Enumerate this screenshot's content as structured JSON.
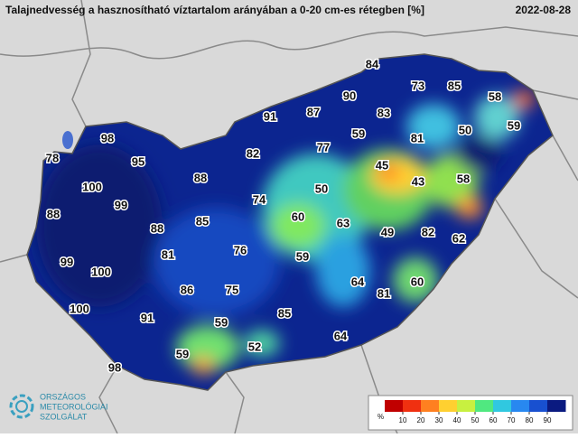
{
  "header": {
    "title": "Talajnedvesség a hasznosítható víztartalom arányában a 0-20 cm-es rétegben [%]",
    "date": "2022-08-28"
  },
  "stations": [
    84,
    73,
    85,
    58,
    90,
    91,
    87,
    83,
    59,
    98,
    59,
    81,
    50,
    82,
    77,
    78,
    95,
    45,
    88,
    43,
    58,
    100,
    50,
    74,
    99,
    88,
    60,
    63,
    85,
    88,
    49,
    82,
    62,
    76,
    81,
    59,
    99,
    100,
    64,
    60,
    86,
    75,
    81,
    100,
    91,
    85,
    59,
    64,
    52,
    59,
    98
  ],
  "colorbar": {
    "unit": "%",
    "lim": [
      0,
      100
    ],
    "ticks": [
      10,
      20,
      30,
      40,
      50,
      60,
      70,
      80,
      90
    ],
    "colors": [
      "#c00000",
      "#f03010",
      "#ff8020",
      "#ffd030",
      "#c8f040",
      "#50e880",
      "#30c8e0",
      "#2888f0",
      "#1850d0",
      "#0a1a80"
    ]
  },
  "logo": {
    "lines": [
      "ORSZÁGOS",
      "METEOROLÓGIAI",
      "SZOLGÁLAT"
    ]
  }
}
